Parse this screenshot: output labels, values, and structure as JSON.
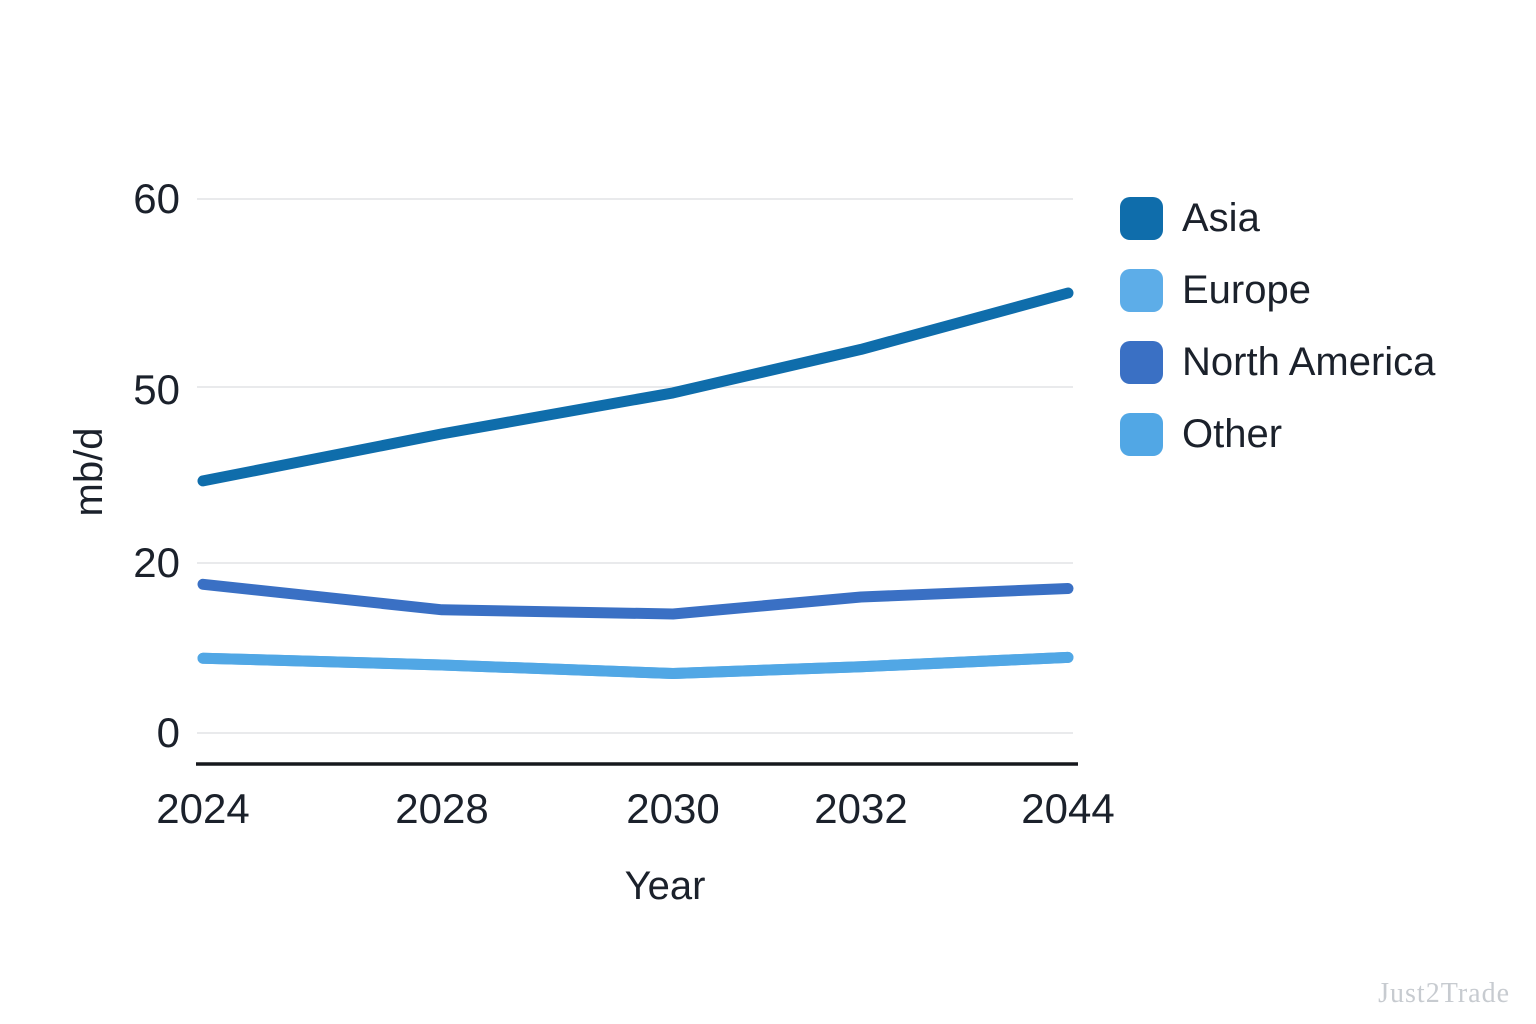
{
  "chart_data": {
    "type": "line",
    "title": "",
    "xlabel": "Year",
    "ylabel": "mb/d",
    "categories": [
      "2024",
      "2028",
      "2030",
      "2032",
      "2044"
    ],
    "y_ticks": [
      0,
      20,
      50,
      60
    ],
    "axis_note": "y tick spacing is non-uniform as rendered (0,20,50,60 almost evenly spaced)",
    "grid": "light horizontal gridline at each y tick",
    "legend_position": "right",
    "series": [
      {
        "name": "Asia",
        "color": "#0f6dab",
        "values": [
          34,
          42,
          49,
          52,
          55
        ]
      },
      {
        "name": "Europe",
        "color": "#5dade8",
        "values": [
          8.8,
          8,
          7,
          7.8,
          8.9
        ]
      },
      {
        "name": "North America",
        "color": "#3a70c4",
        "values": [
          17.5,
          14.5,
          14,
          16,
          17
        ]
      },
      {
        "name": "Other",
        "color": "#51a7e5",
        "values": [
          8.8,
          8,
          7,
          7.8,
          8.9
        ]
      }
    ],
    "series_note": "Europe and Other overlap as a single visible light-blue line",
    "watermark": "Just2Trade"
  }
}
